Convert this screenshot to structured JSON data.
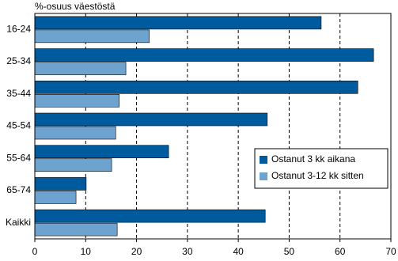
{
  "chart_data": {
    "type": "hbar",
    "title": "%-osuus väestöstä",
    "categories": [
      "16-24",
      "25-34",
      "35-44",
      "45-54",
      "55-64",
      "65-74",
      "Kaikki"
    ],
    "series": [
      {
        "name": "Ostanut 3 kk aikana",
        "color": "#005b9e",
        "values": [
          56.3,
          66.6,
          63.5,
          45.7,
          26.3,
          10.1,
          45.3
        ]
      },
      {
        "name": "Ostanut 3-12 kk sitten",
        "color": "#6ea3cf",
        "values": [
          22.5,
          17.9,
          16.6,
          15.9,
          15.1,
          8.1,
          16.2
        ]
      }
    ],
    "xlim": [
      0,
      70
    ],
    "xticks": [
      0,
      10,
      20,
      30,
      40,
      50,
      60,
      70
    ],
    "grid": true,
    "legend_position": "right"
  }
}
